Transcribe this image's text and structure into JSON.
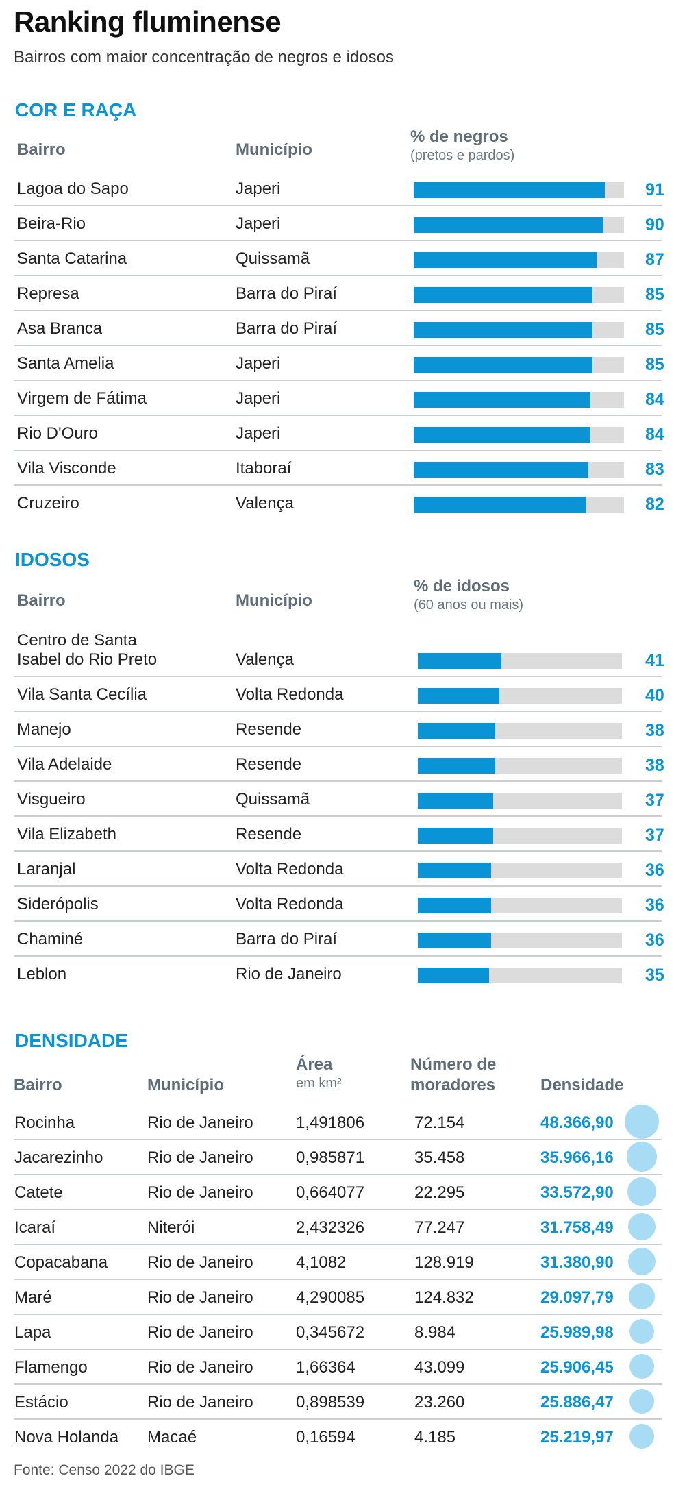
{
  "title": "Ranking fluminense",
  "subtitle": "Bairros com maior concentração de negros e idosos",
  "source": "Fonte: Censo 2022 do IBGE",
  "colors": {
    "accent": "#0a93d5",
    "track": "#dcdcdc",
    "circle": "#a8dcf5"
  },
  "chart_data": [
    {
      "type": "bar",
      "title": "COR E RAÇA",
      "headers": {
        "bairro": "Bairro",
        "municipio": "Município",
        "metric": "% de negros",
        "metric_sub": "(pretos e pardos)"
      },
      "xlim": [
        0,
        100
      ],
      "rows": [
        {
          "bairro": "Lagoa do Sapo",
          "municipio": "Japeri",
          "value": 91
        },
        {
          "bairro": "Beira-Rio",
          "municipio": "Japeri",
          "value": 90
        },
        {
          "bairro": "Santa Catarina",
          "municipio": "Quissamã",
          "value": 87
        },
        {
          "bairro": "Represa",
          "municipio": "Barra do Piraí",
          "value": 85
        },
        {
          "bairro": "Asa Branca",
          "municipio": "Barra do Piraí",
          "value": 85
        },
        {
          "bairro": "Santa Amelia",
          "municipio": "Japeri",
          "value": 85
        },
        {
          "bairro": "Virgem de Fátima",
          "municipio": "Japeri",
          "value": 84
        },
        {
          "bairro": "Rio D'Ouro",
          "municipio": "Japeri",
          "value": 84
        },
        {
          "bairro": "Vila Visconde",
          "municipio": "Itaboraí",
          "value": 83
        },
        {
          "bairro": "Cruzeiro",
          "municipio": "Valença",
          "value": 82
        }
      ]
    },
    {
      "type": "bar",
      "title": "IDOSOS",
      "headers": {
        "bairro": "Bairro",
        "municipio": "Município",
        "metric": "% de idosos",
        "metric_sub": "(60 anos ou mais)"
      },
      "xlim": [
        0,
        100
      ],
      "rows": [
        {
          "bairro": "Centro de Santa Isabel do Rio Preto",
          "bairro_line1": "Centro de Santa",
          "bairro_line2": "Isabel do Rio Preto",
          "municipio": "Valença",
          "value": 41
        },
        {
          "bairro": "Vila Santa Cecília",
          "municipio": "Volta Redonda",
          "value": 40
        },
        {
          "bairro": "Manejo",
          "municipio": "Resende",
          "value": 38
        },
        {
          "bairro": "Vila Adelaide",
          "municipio": "Resende",
          "value": 38
        },
        {
          "bairro": "Visgueiro",
          "municipio": "Quissamã",
          "value": 37
        },
        {
          "bairro": "Vila Elizabeth",
          "municipio": "Resende",
          "value": 37
        },
        {
          "bairro": "Laranjal",
          "municipio": "Volta Redonda",
          "value": 36
        },
        {
          "bairro": "Siderópolis",
          "municipio": "Volta Redonda",
          "value": 36
        },
        {
          "bairro": "Chaminé",
          "municipio": "Barra do Piraí",
          "value": 36
        },
        {
          "bairro": "Leblon",
          "municipio": "Rio de Janeiro",
          "value": 35
        }
      ]
    },
    {
      "type": "table",
      "title": "DENSIDADE",
      "headers": {
        "bairro": "Bairro",
        "municipio": "Município",
        "area": "Área",
        "area_sub": "em km²",
        "moradores_1": "Número de",
        "moradores_2": "moradores",
        "densidade": "Densidade"
      },
      "rows": [
        {
          "bairro": "Rocinha",
          "municipio": "Rio de Janeiro",
          "area": "1,491806",
          "moradores": "72.154",
          "densidade": "48.366,90",
          "value": 48366.9
        },
        {
          "bairro": "Jacarezinho",
          "municipio": "Rio de Janeiro",
          "area": "0,985871",
          "moradores": "35.458",
          "densidade": "35.966,16",
          "value": 35966.16
        },
        {
          "bairro": "Catete",
          "municipio": "Rio de Janeiro",
          "area": "0,664077",
          "moradores": "22.295",
          "densidade": "33.572,90",
          "value": 33572.9
        },
        {
          "bairro": "Icaraí",
          "municipio": "Niterói",
          "area": "2,432326",
          "moradores": "77.247",
          "densidade": "31.758,49",
          "value": 31758.49
        },
        {
          "bairro": "Copacabana",
          "municipio": "Rio de Janeiro",
          "area": "4,1082",
          "moradores": "128.919",
          "densidade": "31.380,90",
          "value": 31380.9
        },
        {
          "bairro": "Maré",
          "municipio": "Rio de Janeiro",
          "area": "4,290085",
          "moradores": "124.832",
          "densidade": "29.097,79",
          "value": 29097.79
        },
        {
          "bairro": "Lapa",
          "municipio": "Rio de Janeiro",
          "area": "0,345672",
          "moradores": "8.984",
          "densidade": "25.989,98",
          "value": 25989.98
        },
        {
          "bairro": "Flamengo",
          "municipio": "Rio de Janeiro",
          "area": "1,66364",
          "moradores": "43.099",
          "densidade": "25.906,45",
          "value": 25906.45
        },
        {
          "bairro": "Estácio",
          "municipio": "Rio de Janeiro",
          "area": "0,898539",
          "moradores": "23.260",
          "densidade": "25.886,47",
          "value": 25886.47
        },
        {
          "bairro": "Nova Holanda",
          "municipio": "Macaé",
          "area": "0,16594",
          "moradores": "4.185",
          "densidade": "25.219,97",
          "value": 25219.97
        }
      ]
    }
  ]
}
